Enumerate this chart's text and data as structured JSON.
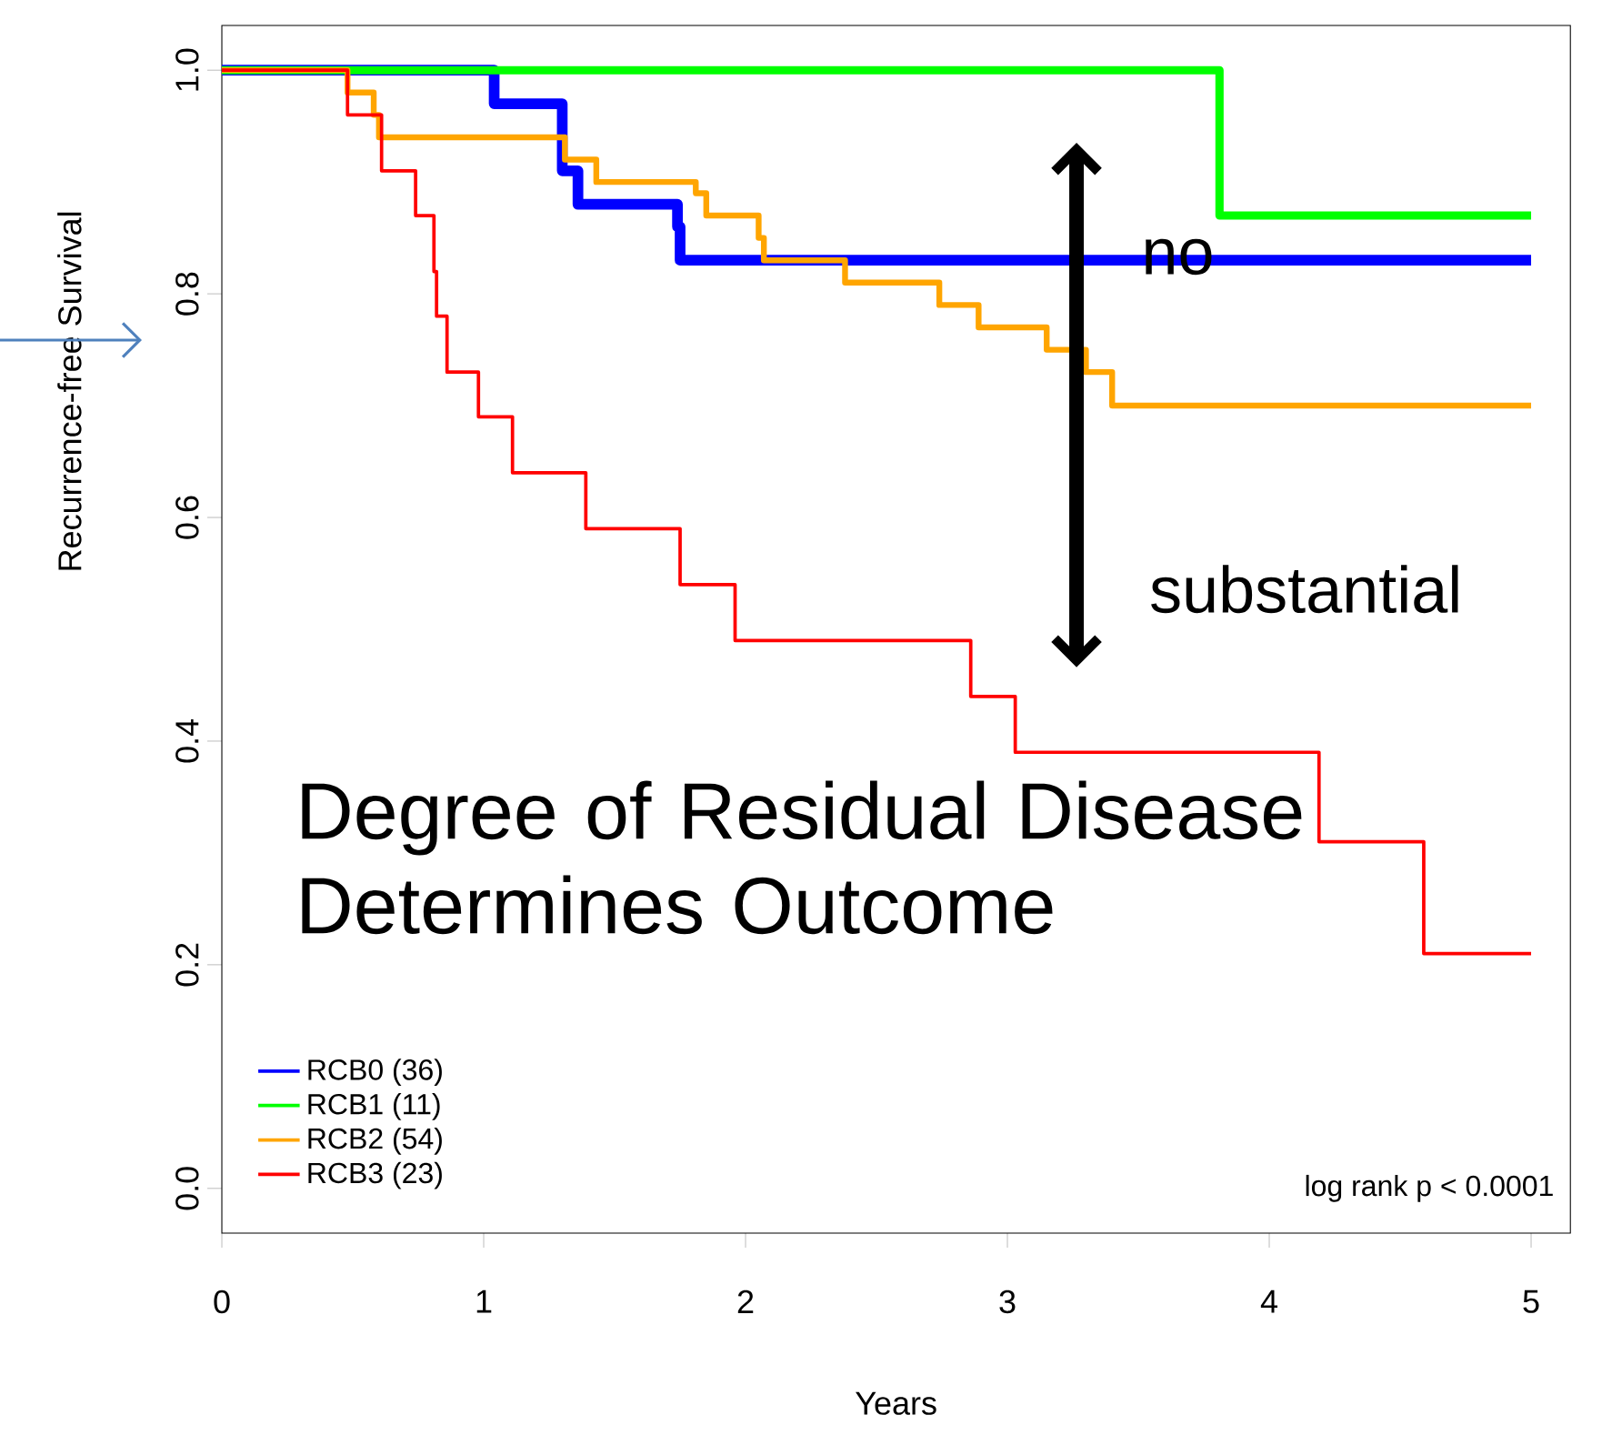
{
  "chart_data": {
    "type": "step",
    "xlabel": "Years",
    "ylabel": "Recurrence-free Survival",
    "xlim": [
      0,
      5.15
    ],
    "ylim": [
      -0.04,
      1.04
    ],
    "xticks": [
      0,
      1,
      2,
      3,
      4,
      5
    ],
    "yticks": [
      {
        "value": 0,
        "label": "0.0"
      },
      0.2,
      0.4,
      0.6,
      0.8,
      {
        "value": 1,
        "label": "1.0"
      }
    ],
    "legend": "bottom left",
    "grid": false,
    "marker": "none",
    "line_style": "solid",
    "series": [
      {
        "name": "RCB0 (36)",
        "color": "#0000ff",
        "x": [
          0,
          1.04,
          1.3,
          1.36,
          1.74,
          1.75,
          5
        ],
        "values": [
          1,
          0.97,
          0.91,
          0.88,
          0.86,
          0.83,
          0.83
        ]
      },
      {
        "name": "RCB1 (11)",
        "color": "#00ff00",
        "x": [
          0,
          3.81,
          5
        ],
        "values": [
          1,
          0.87,
          0.87
        ]
      },
      {
        "name": "RCB2 (54)",
        "color": "#ffa500",
        "x": [
          0,
          0.48,
          0.58,
          0.6,
          1.31,
          1.43,
          1.81,
          1.85,
          2.05,
          2.07,
          2.38,
          2.74,
          2.89,
          3.15,
          3.3,
          3.4,
          5
        ],
        "values": [
          1,
          0.98,
          0.96,
          0.94,
          0.92,
          0.9,
          0.89,
          0.87,
          0.85,
          0.83,
          0.81,
          0.79,
          0.77,
          0.75,
          0.73,
          0.7,
          0.7
        ]
      },
      {
        "name": "RCB3 (23)",
        "color": "#ff0000",
        "x": [
          0,
          0.48,
          0.61,
          0.74,
          0.81,
          0.82,
          0.86,
          0.98,
          1.11,
          1.39,
          1.75,
          1.96,
          2.86,
          3.03,
          4.19,
          4.59,
          5
        ],
        "values": [
          1,
          0.96,
          0.91,
          0.87,
          0.82,
          0.78,
          0.73,
          0.69,
          0.64,
          0.59,
          0.54,
          0.49,
          0.44,
          0.39,
          0.31,
          0.21,
          0.21
        ]
      }
    ],
    "annotations": [
      "no",
      "substantial",
      "Degree of Residual Disease Determines Outcome",
      "log rank p < 0.0001"
    ]
  }
}
